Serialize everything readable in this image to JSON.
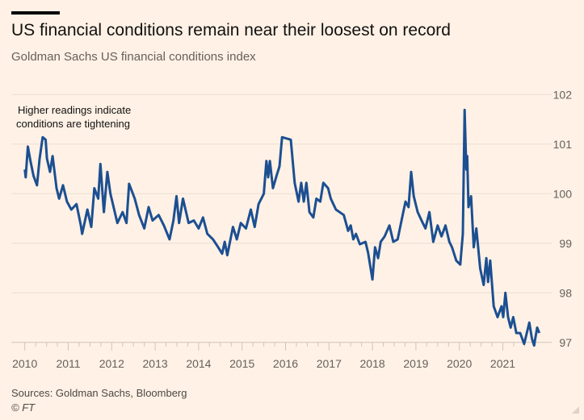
{
  "header": {
    "title": "US financial conditions remain near their loosest on record",
    "subtitle": "Goldman Sachs US financial conditions index"
  },
  "footer": {
    "source": "Sources: Goldman Sachs, Bloomberg",
    "credit": "© FT"
  },
  "colors": {
    "background": "#fff1e5",
    "line": "#1c4f91",
    "grid": "#e9ddd2",
    "text": "#66605c"
  },
  "chart_data": {
    "type": "line",
    "title": "US financial conditions remain near their loosest on record",
    "subtitle": "Goldman Sachs US financial conditions index",
    "annotation": [
      "Higher readings indicate",
      "conditions are tightening"
    ],
    "xlim": [
      2010,
      2022
    ],
    "ylim": [
      97,
      102
    ],
    "x_ticks": [
      "2010",
      "2011",
      "2012",
      "2013",
      "2014",
      "2015",
      "2016",
      "2017",
      "2018",
      "2019",
      "2020",
      "2021"
    ],
    "y_ticks": [
      "97",
      "98",
      "99",
      "100",
      "101",
      "102"
    ],
    "y_axis_side": "right",
    "grid": "horizontal",
    "series": [
      {
        "x": [
          2010.0,
          2010.02,
          2010.07,
          2010.13,
          2010.2,
          2010.28,
          2010.34,
          2010.41,
          2010.48,
          2010.51,
          2010.58,
          2010.64,
          2010.73,
          2010.79,
          2010.88,
          2010.97,
          2011.07,
          2011.19,
          2011.29,
          2011.32,
          2011.44,
          2011.53,
          2011.6,
          2011.69,
          2011.74,
          2011.82,
          2011.9,
          2011.97,
          2012.13,
          2012.25,
          2012.34,
          2012.4,
          2012.53,
          2012.63,
          2012.75,
          2012.85,
          2012.94,
          2013.08,
          2013.2,
          2013.33,
          2013.42,
          2013.49,
          2013.55,
          2013.64,
          2013.77,
          2013.89,
          2014.0,
          2014.1,
          2014.2,
          2014.33,
          2014.45,
          2014.54,
          2014.6,
          2014.66,
          2014.79,
          2014.88,
          2014.97,
          2015.09,
          2015.2,
          2015.29,
          2015.38,
          2015.5,
          2015.56,
          2015.6,
          2015.64,
          2015.71,
          2015.8,
          2015.86,
          2015.92,
          2016.12,
          2016.21,
          2016.3,
          2016.36,
          2016.42,
          2016.48,
          2016.55,
          2016.64,
          2016.71,
          2016.8,
          2016.87,
          2016.98,
          2017.04,
          2017.16,
          2017.34,
          2017.44,
          2017.5,
          2017.56,
          2017.62,
          2017.71,
          2017.84,
          2017.9,
          2018.0,
          2018.06,
          2018.13,
          2018.19,
          2018.28,
          2018.39,
          2018.48,
          2018.58,
          2018.67,
          2018.76,
          2018.83,
          2018.89,
          2018.95,
          2019.04,
          2019.13,
          2019.22,
          2019.31,
          2019.4,
          2019.5,
          2019.59,
          2019.68,
          2019.77,
          2019.83,
          2019.93,
          2020.02,
          2020.08,
          2020.12,
          2020.16,
          2020.18,
          2020.21,
          2020.27,
          2020.33,
          2020.39,
          2020.48,
          2020.56,
          2020.62,
          2020.66,
          2020.71,
          2020.79,
          2020.88,
          2020.97,
          2021.01,
          2021.06,
          2021.12,
          2021.18,
          2021.24,
          2021.31,
          2021.4,
          2021.49,
          2021.61,
          2021.67,
          2021.72,
          2021.79,
          2021.84
        ],
        "y": [
          100.49,
          100.33,
          100.95,
          100.66,
          100.36,
          100.17,
          100.7,
          101.14,
          101.09,
          100.71,
          100.44,
          100.76,
          100.11,
          99.9,
          100.17,
          99.84,
          99.68,
          99.79,
          99.36,
          99.19,
          99.68,
          99.33,
          100.11,
          99.9,
          100.6,
          99.63,
          100.44,
          100.0,
          99.41,
          99.63,
          99.41,
          100.2,
          99.9,
          99.57,
          99.3,
          99.73,
          99.46,
          99.57,
          99.36,
          99.08,
          99.46,
          99.95,
          99.41,
          99.9,
          99.41,
          99.46,
          99.3,
          99.52,
          99.19,
          99.08,
          98.92,
          98.79,
          99.03,
          98.76,
          99.33,
          99.08,
          99.41,
          99.3,
          99.68,
          99.33,
          99.79,
          100.0,
          100.66,
          100.33,
          100.66,
          100.11,
          100.38,
          100.55,
          101.14,
          101.09,
          100.22,
          99.84,
          100.22,
          99.84,
          100.22,
          99.63,
          99.52,
          99.9,
          99.84,
          100.22,
          100.11,
          99.9,
          99.68,
          99.57,
          99.25,
          99.36,
          99.08,
          99.19,
          98.98,
          99.03,
          98.81,
          98.27,
          98.92,
          98.7,
          99.03,
          99.14,
          99.36,
          99.03,
          99.08,
          99.46,
          99.84,
          99.73,
          100.44,
          99.95,
          99.63,
          99.46,
          99.3,
          99.63,
          99.03,
          99.36,
          99.14,
          99.36,
          99.03,
          98.92,
          98.65,
          98.57,
          99.19,
          101.69,
          100.49,
          100.76,
          99.73,
          99.95,
          98.92,
          99.3,
          98.49,
          98.16,
          98.7,
          98.22,
          98.65,
          97.73,
          97.51,
          97.73,
          97.51,
          98.0,
          97.51,
          97.3,
          97.51,
          97.19,
          97.19,
          96.97,
          97.4,
          97.08,
          96.94,
          97.3,
          97.19
        ]
      }
    ]
  }
}
